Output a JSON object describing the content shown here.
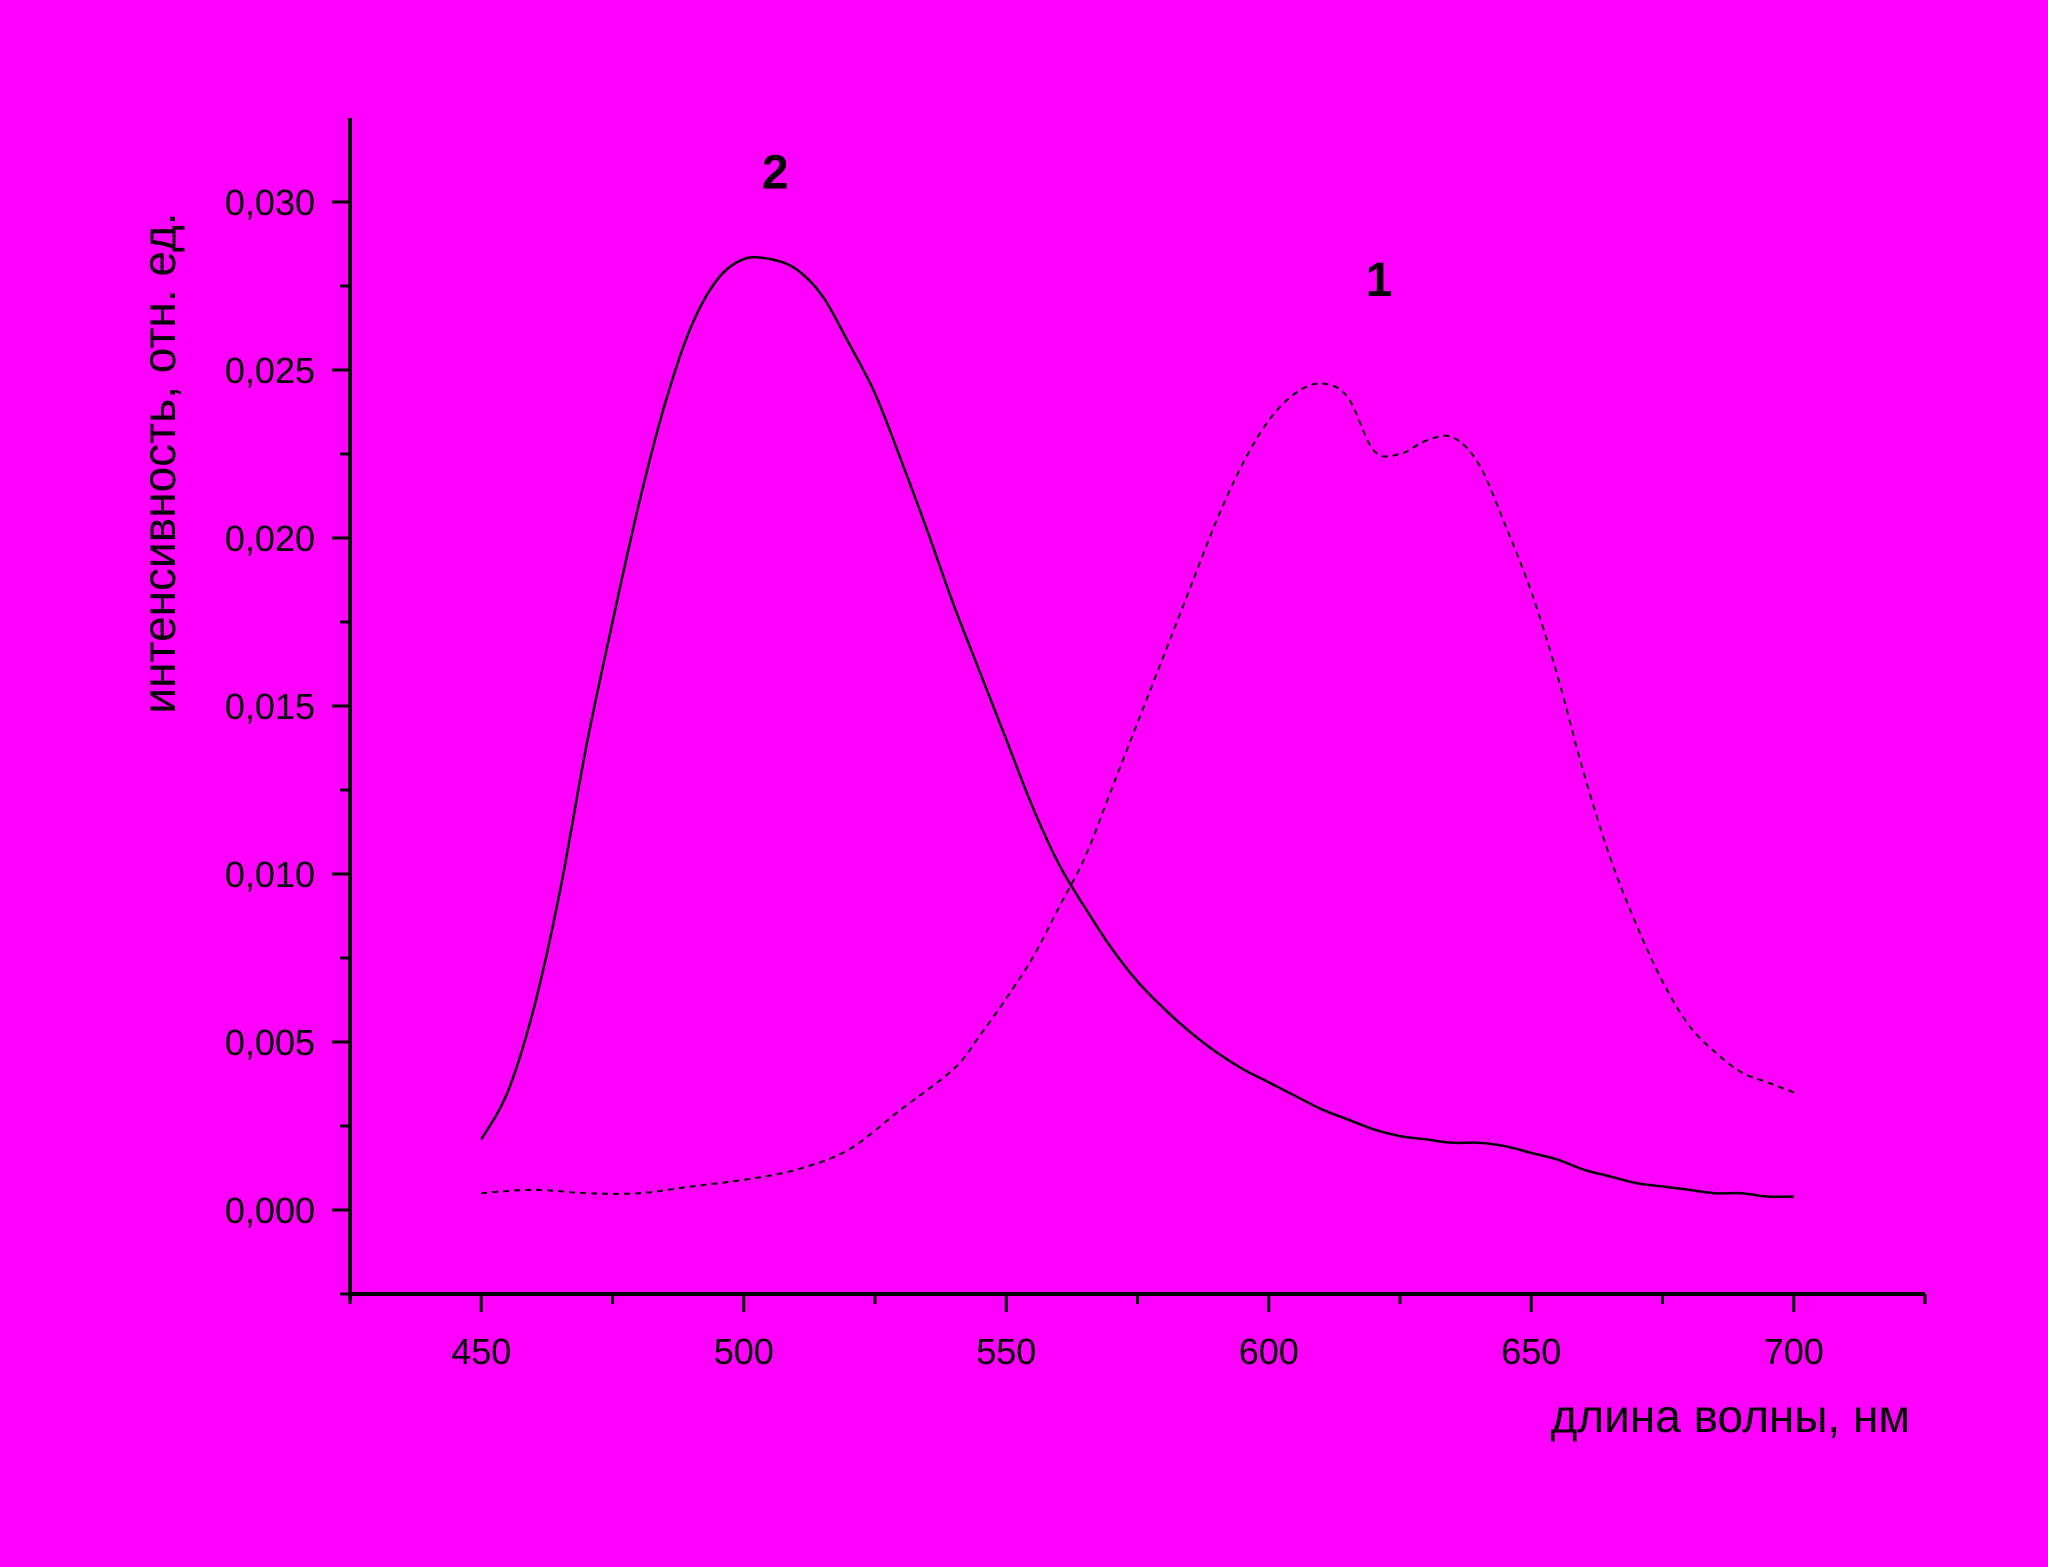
{
  "background_color": "#ff00ff",
  "chart_data": {
    "type": "line",
    "title": "",
    "xlabel": "длина волны, нм",
    "ylabel": "интенсивность, отн. ед.",
    "xlim": [
      425,
      725
    ],
    "ylim": [
      -0.0025,
      0.0325
    ],
    "x_ticks": [
      450,
      500,
      550,
      600,
      650,
      700
    ],
    "x_tick_labels": [
      "450",
      "500",
      "550",
      "600",
      "650",
      "700"
    ],
    "y_ticks": [
      0.0,
      0.005,
      0.01,
      0.015,
      0.02,
      0.025,
      0.03
    ],
    "y_tick_labels": [
      "0,000",
      "0,005",
      "0,010",
      "0,015",
      "0,020",
      "0,025",
      "0,030"
    ],
    "grid": false,
    "series": [
      {
        "name": "1",
        "line_style": "dashed",
        "label_position": [
          621,
          0.0272
        ],
        "x": [
          450,
          460,
          470,
          480,
          490,
          500,
          510,
          520,
          530,
          540,
          545,
          550,
          555,
          560,
          565,
          570,
          575,
          580,
          585,
          590,
          595,
          600,
          605,
          610,
          615,
          620,
          625,
          630,
          635,
          640,
          645,
          650,
          655,
          660,
          665,
          670,
          675,
          680,
          685,
          690,
          695,
          700
        ],
        "y": [
          0.0005,
          0.0006,
          0.0005,
          0.0005,
          0.0007,
          0.0009,
          0.0012,
          0.0018,
          0.003,
          0.0042,
          0.0052,
          0.0063,
          0.0075,
          0.009,
          0.0105,
          0.0125,
          0.0145,
          0.0165,
          0.0185,
          0.0205,
          0.0222,
          0.0235,
          0.0243,
          0.0246,
          0.0242,
          0.0226,
          0.0225,
          0.0229,
          0.023,
          0.0222,
          0.0204,
          0.0184,
          0.0159,
          0.013,
          0.0105,
          0.0085,
          0.0068,
          0.0055,
          0.0047,
          0.0041,
          0.0038,
          0.0035
        ]
      },
      {
        "name": "2",
        "line_style": "solid",
        "label_position": [
          506,
          0.0304
        ],
        "x": [
          450,
          455,
          460,
          465,
          470,
          475,
          480,
          485,
          490,
          495,
          500,
          505,
          510,
          515,
          520,
          525,
          530,
          535,
          540,
          545,
          550,
          555,
          560,
          565,
          570,
          575,
          580,
          585,
          590,
          595,
          600,
          605,
          610,
          615,
          620,
          625,
          630,
          635,
          640,
          645,
          650,
          655,
          660,
          665,
          670,
          675,
          680,
          685,
          690,
          695,
          700
        ],
        "y": [
          0.0021,
          0.0035,
          0.006,
          0.0095,
          0.0138,
          0.0175,
          0.021,
          0.024,
          0.0263,
          0.0277,
          0.0283,
          0.0283,
          0.028,
          0.0272,
          0.0258,
          0.0243,
          0.0223,
          0.0202,
          0.018,
          0.016,
          0.014,
          0.012,
          0.0103,
          0.009,
          0.0078,
          0.0068,
          0.006,
          0.0053,
          0.0047,
          0.0042,
          0.0038,
          0.0034,
          0.003,
          0.0027,
          0.0024,
          0.0022,
          0.0021,
          0.002,
          0.002,
          0.0019,
          0.0017,
          0.0015,
          0.0012,
          0.001,
          0.0008,
          0.0007,
          0.0006,
          0.0005,
          0.0005,
          0.0004,
          0.0004
        ]
      }
    ]
  }
}
